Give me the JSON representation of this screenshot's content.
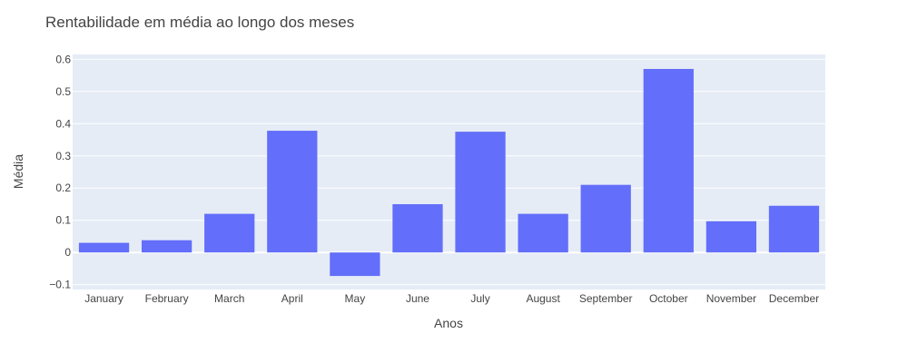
{
  "chart_data": {
    "type": "bar",
    "title": "Rentabilidade em média ao longo dos meses",
    "xlabel": "Anos",
    "ylabel": "Média",
    "categories": [
      "January",
      "February",
      "March",
      "April",
      "May",
      "June",
      "July",
      "August",
      "September",
      "October",
      "November",
      "December"
    ],
    "values": [
      0.03,
      0.038,
      0.12,
      0.378,
      -0.073,
      0.15,
      0.375,
      0.12,
      0.21,
      0.57,
      0.097,
      0.145
    ],
    "ylim": [
      -0.115,
      0.615
    ],
    "yticks": [
      -0.1,
      0,
      0.1,
      0.2,
      0.3,
      0.4,
      0.5,
      0.6
    ],
    "ytick_labels": [
      "−0.1",
      "0",
      "0.1",
      "0.2",
      "0.3",
      "0.4",
      "0.5",
      "0.6"
    ],
    "grid": true,
    "legend": "none",
    "colors": {
      "bar": "#636efa",
      "plot_bg": "#e5ecf6",
      "grid": "#ffffff"
    }
  }
}
